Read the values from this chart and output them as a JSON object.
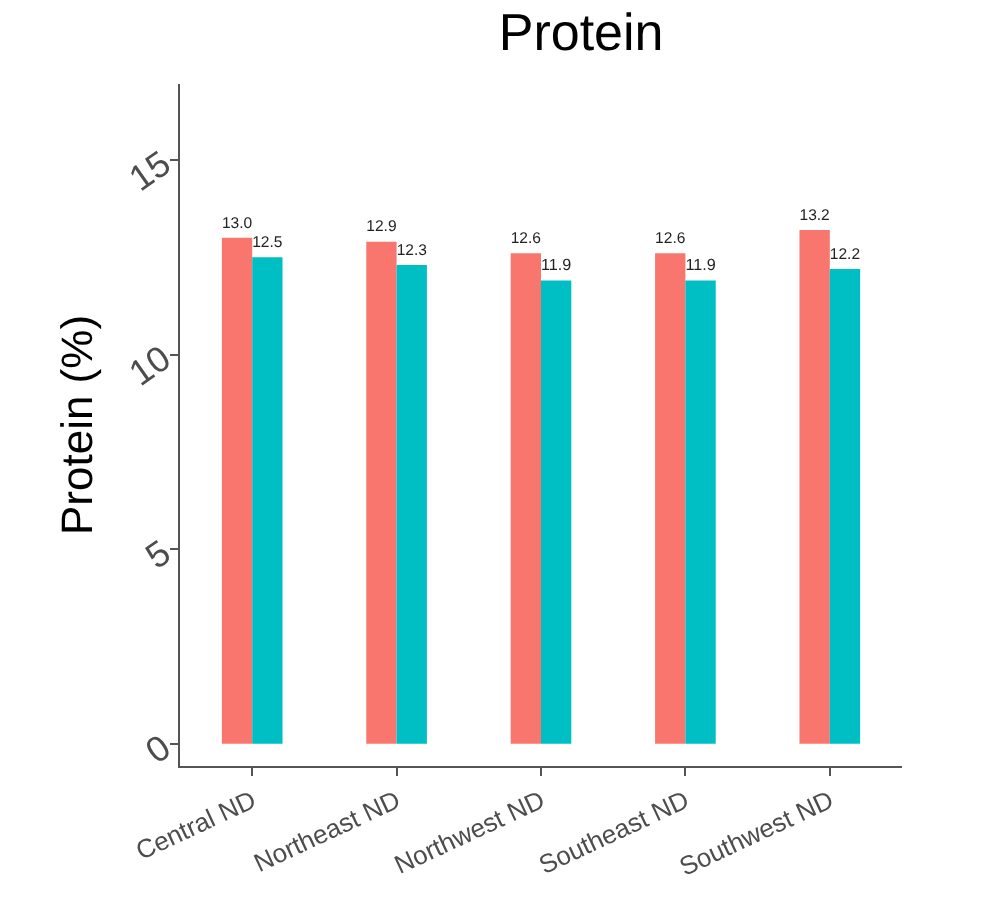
{
  "chart_data": {
    "type": "bar",
    "title": "Protein",
    "ylabel": "Protein (%)",
    "categories": [
      "Central ND",
      "Northeast ND",
      "Northwest ND",
      "Southeast ND",
      "Southwest ND"
    ],
    "series": [
      {
        "color": "#f8766d",
        "values": [
          13.0,
          12.9,
          12.6,
          12.6,
          13.2
        ],
        "value_labels": [
          "13.0",
          "12.9",
          "12.6",
          "12.6",
          "13.2"
        ]
      },
      {
        "color": "#00bfc4",
        "values": [
          12.5,
          12.3,
          11.9,
          11.9,
          12.2
        ],
        "value_labels": [
          "12.5",
          "12.3",
          "11.9",
          "11.9",
          "12.2"
        ]
      }
    ],
    "ylim": [
      -0.57,
      16.95
    ],
    "yticks": [
      0,
      5,
      10,
      15
    ],
    "grid": false
  }
}
